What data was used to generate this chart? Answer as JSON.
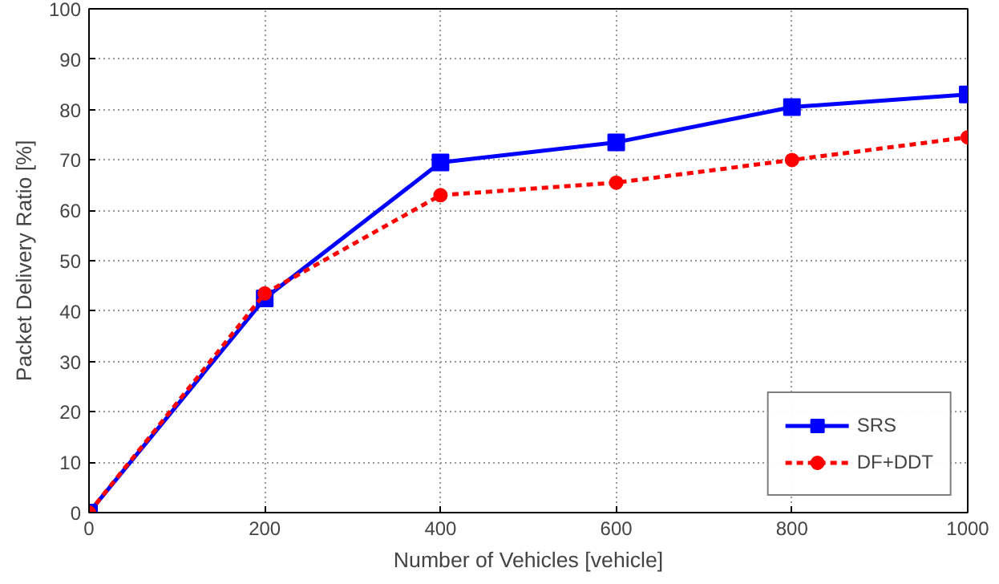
{
  "chart_data": {
    "type": "line",
    "xlabel": "Number of Vehicles [vehicle]",
    "ylabel": "Packet Delivery Ratio [%]",
    "x": [
      0,
      200,
      400,
      600,
      800,
      1000
    ],
    "series": [
      {
        "name": "SRS",
        "color": "#0000ff",
        "values": [
          0,
          42.5,
          69.5,
          73.5,
          80.5,
          83
        ],
        "marker": "square",
        "line_style": "solid"
      },
      {
        "name": "DF+DDT",
        "color": "#ff0000",
        "values": [
          0,
          43.5,
          63,
          65.5,
          70,
          74.5
        ],
        "marker": "circle",
        "line_style": "dashed"
      }
    ],
    "xlim": [
      0,
      1000
    ],
    "xticks": [
      0,
      200,
      400,
      600,
      800,
      1000
    ],
    "ylim": [
      0,
      100
    ],
    "yticks": [
      0,
      10,
      20,
      30,
      40,
      50,
      60,
      70,
      80,
      90,
      100
    ],
    "grid": true,
    "legend": "bottom right"
  }
}
